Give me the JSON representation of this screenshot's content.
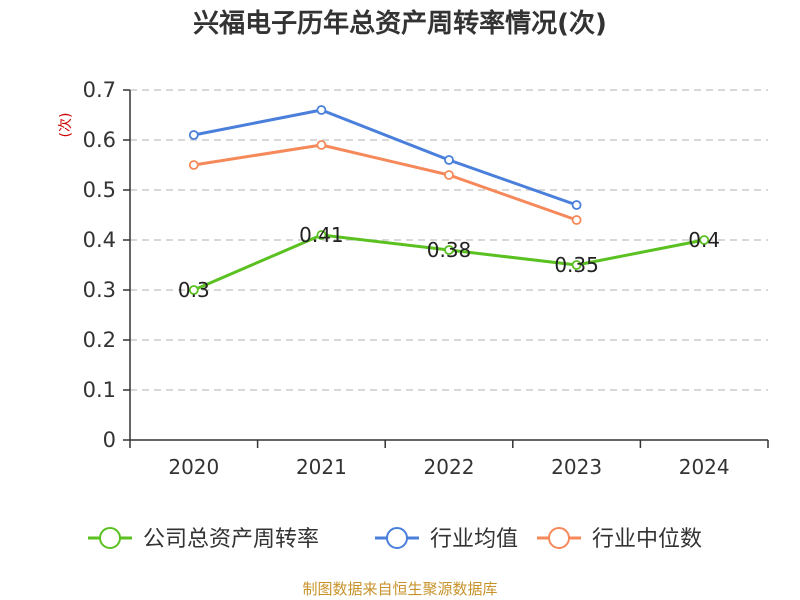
{
  "chart_data": {
    "type": "line",
    "title": "兴福电子历年总资产周转率情况(次)",
    "ylabel": "(次)",
    "categories": [
      "2020",
      "2021",
      "2022",
      "2023",
      "2024"
    ],
    "ylim": [
      0,
      0.7
    ],
    "yticks": [
      "0",
      "0.1",
      "0.2",
      "0.3",
      "0.4",
      "0.5",
      "0.6",
      "0.7"
    ],
    "grid": true,
    "legend_position": "bottom",
    "series": [
      {
        "name": "公司总资产周转率",
        "color": "#5ac121",
        "values": [
          0.3,
          0.41,
          0.38,
          0.35,
          0.4
        ],
        "labels": [
          "0.3",
          "0.41",
          "0.38",
          "0.35",
          "0.4"
        ]
      },
      {
        "name": "行业均值",
        "color": "#4a7fdb",
        "values": [
          0.61,
          0.66,
          0.56,
          0.47,
          null
        ]
      },
      {
        "name": "行业中位数",
        "color": "#f5895a",
        "values": [
          0.55,
          0.59,
          0.53,
          0.44,
          null
        ]
      }
    ]
  },
  "source": "制图数据来自恒生聚源数据库"
}
